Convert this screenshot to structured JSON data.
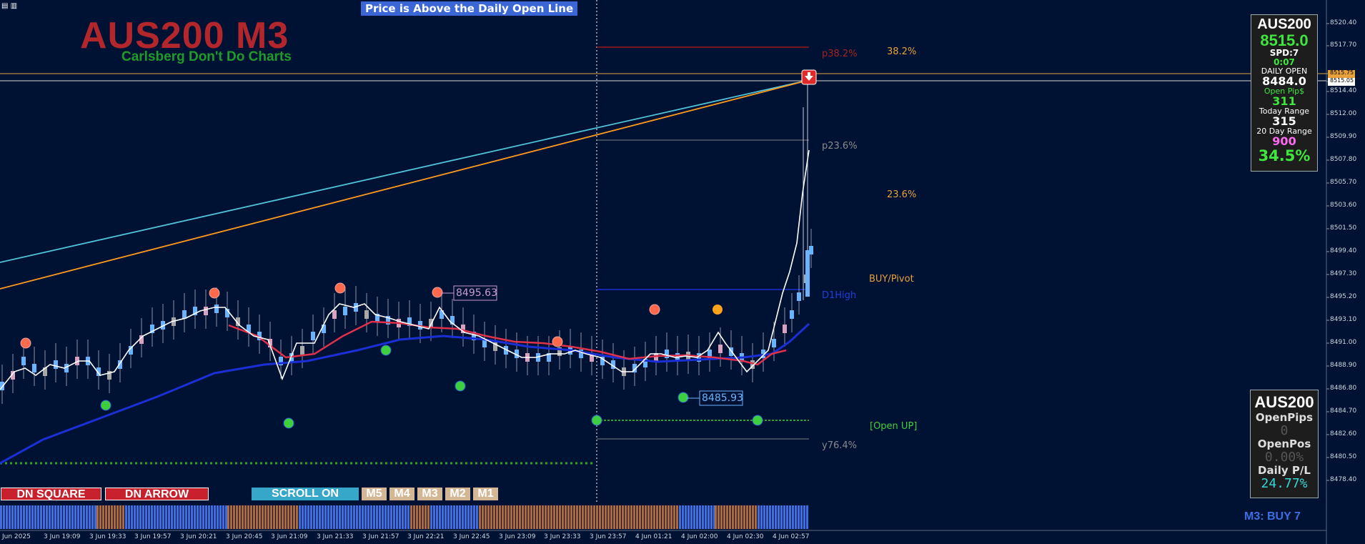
{
  "toolbar": {
    "icons": [
      "bar-chart-icon",
      "candle-chart-icon"
    ]
  },
  "header": {
    "banner": "Price is Above the Daily Open Line",
    "title": "AUS200 M3",
    "subtitle": "Carlsberg Don't Do Charts"
  },
  "price_axis": {
    "labels": [
      "8520.40",
      "8517.70",
      "8515.75",
      "8515.05",
      "8514.40",
      "8512.00",
      "8509.90",
      "8507.80",
      "8505.70",
      "8503.60",
      "8501.50",
      "8499.40",
      "8497.30",
      "8495.20",
      "8493.10",
      "8491.00",
      "8488.90",
      "8486.80",
      "8484.70",
      "8482.60",
      "8480.50",
      "8478.40"
    ],
    "highlight_ask": "8515.75",
    "highlight_bid": "8515.05"
  },
  "time_axis": {
    "labels": [
      "Jun 2025",
      "3 Jun 19:09",
      "3 Jun 19:33",
      "3 Jun 19:57",
      "3 Jun 20:21",
      "3 Jun 20:45",
      "3 Jun 21:09",
      "3 Jun 21:33",
      "3 Jun 21:57",
      "3 Jun 22:21",
      "3 Jun 22:45",
      "3 Jun 23:09",
      "3 Jun 23:33",
      "3 Jun 23:57",
      "4 Jun 01:21",
      "4 Jun 02:00",
      "4 Jun 02:30",
      "4 Jun 02:57"
    ]
  },
  "levels": {
    "p38": "p38.2%",
    "fib38": "38.2%",
    "p23": "p23.6%",
    "fib23": "23.6%",
    "buy_pivot": "BUY/Pivot",
    "d1high": "D1High",
    "open_up": "[Open UP]",
    "y76": "y76.4%",
    "callout_high": "8495.63",
    "callout_low": "8485.93"
  },
  "info_panel": {
    "symbol": "AUS200",
    "price": "8515.0",
    "spread": "SPD:7",
    "timer": "0:07",
    "daily_open_label": "DAILY OPEN",
    "daily_open": "8484.0",
    "open_pips_label": "Open Pip$",
    "open_pips": "311",
    "today_range_label": "Today Range",
    "today_range": "315",
    "day20_label": "20 Day Range",
    "day20": "900",
    "percent": "34.5%"
  },
  "account_panel": {
    "symbol": "AUS200",
    "open_pips_label": "OpenPips",
    "open_pips": "0",
    "open_pos_label": "OpenPos",
    "open_pos": "0.00%",
    "daily_pl_label": "Daily P/L",
    "daily_pl": "24.77%"
  },
  "buttons": {
    "dn_square": "DN SQUARE",
    "dn_arrow": "DN ARROW",
    "scroll": "SCROLL ON",
    "tf": [
      "M5",
      "M4",
      "M3",
      "M2",
      "M1"
    ]
  },
  "status": {
    "signal": "M3: BUY 7"
  },
  "colors": {
    "background": "#001233",
    "title_red": "#b3262c",
    "subtitle_green": "#1f9b2a",
    "fib_orange": "#e8a13a",
    "cyan_line": "#4fc3d9",
    "orange_line": "#ff9a1f",
    "white_line": "#ffffff",
    "blue_ma": "#1a2fd6",
    "red_ma": "#e0304a",
    "dot_red": "#ff6a4d",
    "dot_green": "#3ecf3e",
    "dot_orange": "#ffa41a",
    "up_bar": "#6ab4ff",
    "down_bar": "#d9a0c0"
  }
}
